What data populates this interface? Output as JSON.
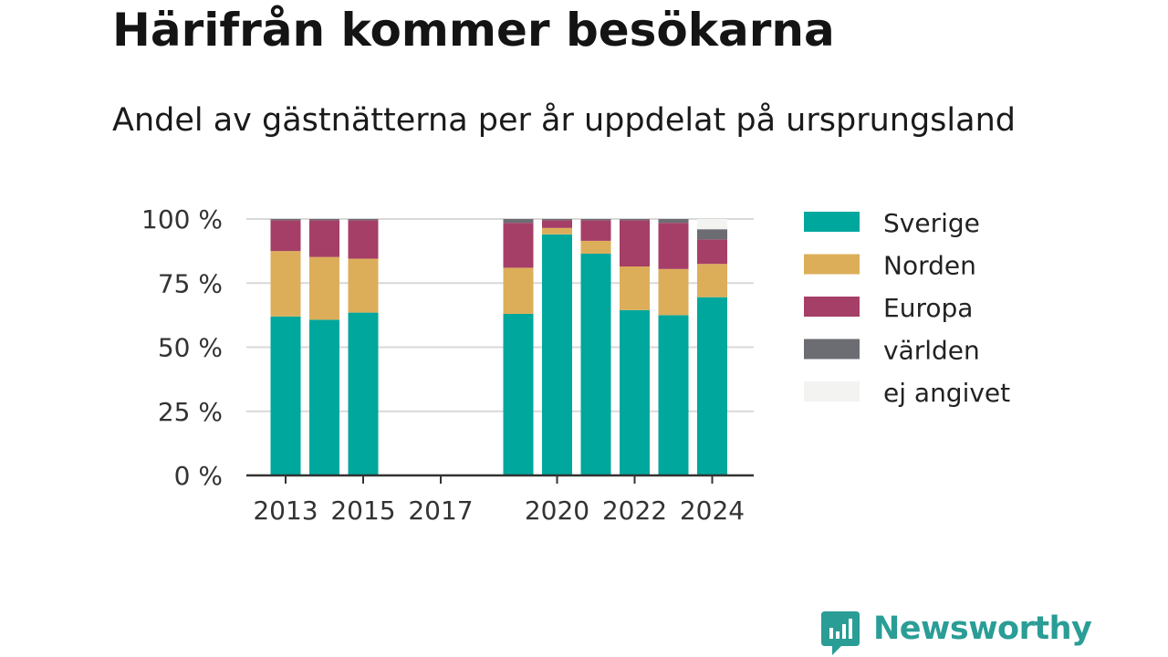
{
  "header": {
    "title": "Härifrån kommer besökarna",
    "subtitle": "Andel av gästnätterna per år uppdelat på ursprungsland"
  },
  "brand": {
    "name": "Newsworthy",
    "logo_icon": "newsworthy-bar-chart-icon",
    "color": "#2a9d96"
  },
  "chart_data": {
    "type": "bar",
    "stacked": true,
    "x": [
      2013,
      2014,
      2015,
      2016,
      2017,
      2018,
      2019,
      2020,
      2021,
      2022,
      2023,
      2024
    ],
    "x_tick_labels": [
      "2013",
      "2015",
      "2017",
      "2020",
      "2022",
      "2024"
    ],
    "y_tick_labels": [
      "0 %",
      "25 %",
      "50 %",
      "75 %",
      "100 %"
    ],
    "y_ticks": [
      0,
      25,
      50,
      75,
      100
    ],
    "ylim": [
      0,
      100
    ],
    "grid": true,
    "legend_position": "right",
    "series": [
      {
        "name": "Sverige",
        "color": "#00a79d",
        "values": [
          62,
          60.7,
          63.5,
          null,
          null,
          null,
          63,
          94,
          86.5,
          64.5,
          62.5,
          69.5
        ]
      },
      {
        "name": "Norden",
        "color": "#dcae5a",
        "values": [
          25.5,
          24.5,
          21,
          null,
          null,
          null,
          18,
          2.5,
          5,
          17,
          18,
          13
        ]
      },
      {
        "name": "Europa",
        "color": "#a53f67",
        "values": [
          12,
          14.3,
          15,
          null,
          null,
          null,
          17.5,
          3,
          8,
          18,
          18,
          9.5
        ]
      },
      {
        "name": "världen",
        "color": "#6c6c73",
        "values": [
          0.5,
          0.5,
          0.5,
          null,
          null,
          null,
          1.5,
          0.5,
          0.5,
          0.5,
          1.5,
          4
        ]
      },
      {
        "name": "ej angivet",
        "color": "#f3f3f2",
        "values": [
          0,
          0,
          0,
          null,
          null,
          null,
          0,
          0,
          0,
          0,
          0,
          4
        ]
      }
    ]
  }
}
